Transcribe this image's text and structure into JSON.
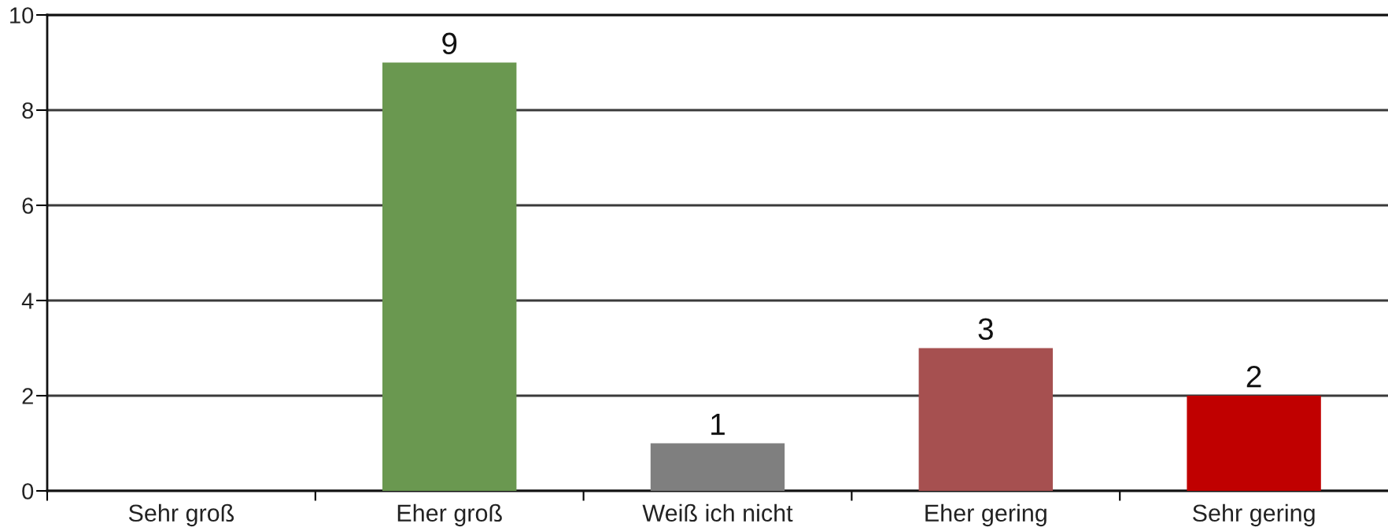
{
  "chart_data": {
    "type": "bar",
    "categories": [
      "Sehr groß",
      "Eher groß",
      "Weiß ich nicht",
      "Eher gering",
      "Sehr gering"
    ],
    "values": [
      0,
      9,
      1,
      3,
      2
    ],
    "colors": [
      "#4e7a37",
      "#6a9850",
      "#7f7f7f",
      "#a65050",
      "#c00000"
    ],
    "value_labels": [
      null,
      "9",
      "1",
      "3",
      "2"
    ],
    "ylim": [
      0,
      10
    ],
    "yticks": [
      0,
      2,
      4,
      6,
      8,
      10
    ],
    "grid": "y"
  }
}
